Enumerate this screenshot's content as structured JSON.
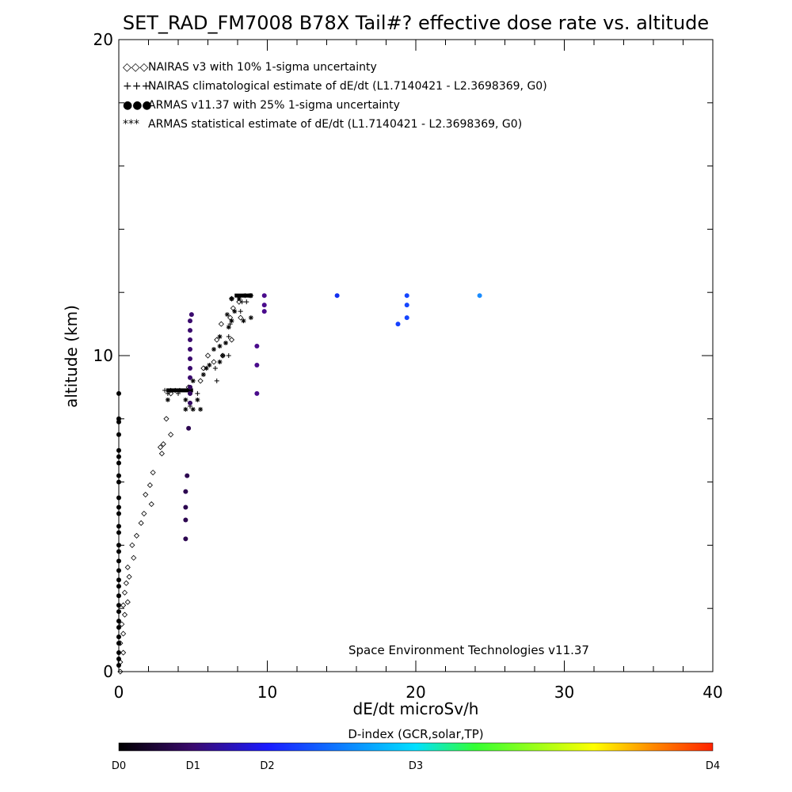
{
  "chart_data": {
    "type": "scatter",
    "title": "SET_RAD_FM7008  B78X Tail#? effective dose rate vs. altitude",
    "xlabel": "dE/dt microSv/h",
    "ylabel": "altitude (km)",
    "xlim": [
      0,
      40
    ],
    "ylim": [
      0,
      20
    ],
    "x_ticks": [
      "0",
      "10",
      "20",
      "30",
      "40"
    ],
    "y_ticks": [
      "0",
      "10",
      "20"
    ],
    "legend_position": "top-left",
    "legend": [
      {
        "symbol": "◇◇◇",
        "label": "NAIRAS v3 with 10% 1-sigma uncertainty"
      },
      {
        "symbol": "+++",
        "label": "NAIRAS climatological estimate of dE/dt (L1.7140421 - L2.3698369, G0)"
      },
      {
        "symbol": "●●●",
        "label": "ARMAS v11.37 with 25% 1-sigma uncertainty"
      },
      {
        "symbol": "***",
        "label": "ARMAS statistical estimate of dE/dt (L1.7140421 - L2.3698369, G0)"
      }
    ],
    "annotation": "Space Environment Technologies v11.37",
    "colorbar": {
      "title": "D-index (GCR,solar,TP)",
      "labels": [
        "D0",
        "D1",
        "D2",
        "D3",
        "D4"
      ],
      "colors": [
        "#000000",
        "#3a0a6e",
        "#1a1aff",
        "#00e0ff",
        "#33ff33",
        "#ffff00",
        "#ff8800",
        "#ff2200"
      ]
    },
    "series": [
      {
        "name": "NAIRAS v3 with 10% 1-sigma uncertainty",
        "marker": "diamond",
        "points": [
          [
            0.1,
            0
          ],
          [
            0.1,
            0.3
          ],
          [
            0.3,
            0.6
          ],
          [
            0.1,
            0.9
          ],
          [
            0.3,
            1.2
          ],
          [
            0.2,
            1.5
          ],
          [
            0.4,
            1.8
          ],
          [
            0.3,
            2.1
          ],
          [
            0.6,
            2.2
          ],
          [
            0.4,
            2.5
          ],
          [
            0.5,
            2.8
          ],
          [
            0.7,
            3.0
          ],
          [
            0.6,
            3.3
          ],
          [
            1.0,
            3.6
          ],
          [
            0.9,
            4.0
          ],
          [
            1.2,
            4.3
          ],
          [
            1.5,
            4.7
          ],
          [
            1.7,
            5.0
          ],
          [
            2.2,
            5.3
          ],
          [
            1.8,
            5.6
          ],
          [
            2.1,
            5.9
          ],
          [
            2.3,
            6.3
          ],
          [
            2.9,
            6.9
          ],
          [
            2.8,
            7.1
          ],
          [
            3.0,
            7.2
          ],
          [
            3.5,
            7.5
          ],
          [
            3.2,
            8.0
          ],
          [
            3.5,
            8.8
          ],
          [
            4.7,
            9.0
          ],
          [
            5.5,
            9.2
          ],
          [
            5.7,
            9.6
          ],
          [
            6.4,
            9.8
          ],
          [
            6.0,
            10.0
          ],
          [
            7.0,
            10.0
          ],
          [
            6.6,
            10.5
          ],
          [
            7.6,
            10.5
          ],
          [
            6.9,
            11.0
          ],
          [
            7.5,
            11.2
          ],
          [
            8.2,
            11.2
          ],
          [
            7.7,
            11.5
          ],
          [
            8.1,
            11.7
          ],
          [
            7.6,
            11.8
          ]
        ]
      },
      {
        "name": "NAIRAS climatological estimate of dE/dt (L1.7140421 - L2.3698369, G0)",
        "marker": "plus",
        "points": [
          [
            3.1,
            8.9
          ],
          [
            3.5,
            8.9
          ],
          [
            3.8,
            8.9
          ],
          [
            4.1,
            8.9
          ],
          [
            3.3,
            8.8
          ],
          [
            4.0,
            8.8
          ],
          [
            4.8,
            8.8
          ],
          [
            5.3,
            8.8
          ],
          [
            4.8,
            8.4
          ],
          [
            6.6,
            9.2
          ],
          [
            6.5,
            9.6
          ],
          [
            7.4,
            10.0
          ],
          [
            7.4,
            10.6
          ],
          [
            7.5,
            11.0
          ],
          [
            8.2,
            11.4
          ],
          [
            8.3,
            11.7
          ],
          [
            8.6,
            11.7
          ],
          [
            8.9,
            11.9
          ]
        ]
      },
      {
        "name": "ARMAS v11.37 with 25% 1-sigma uncertainty",
        "marker": "dot",
        "points": [
          [
            0,
            8.8
          ],
          [
            0,
            8.0
          ],
          [
            0,
            7.9
          ],
          [
            0,
            7.5
          ],
          [
            0,
            7.0
          ],
          [
            0,
            6.8
          ],
          [
            0,
            6.6
          ],
          [
            0,
            6.2
          ],
          [
            0,
            6.0
          ],
          [
            0,
            5.5
          ],
          [
            0,
            5.2
          ],
          [
            0,
            5.0
          ],
          [
            0,
            4.6
          ],
          [
            0,
            4.4
          ],
          [
            0,
            4.0
          ],
          [
            0,
            3.8
          ],
          [
            0,
            3.5
          ],
          [
            0,
            3.2
          ],
          [
            0,
            2.9
          ],
          [
            0,
            2.7
          ],
          [
            0,
            2.4
          ],
          [
            0,
            2.1
          ],
          [
            0,
            1.9
          ],
          [
            0,
            1.6
          ],
          [
            0,
            1.4
          ],
          [
            0,
            1.1
          ],
          [
            0,
            0.9
          ],
          [
            0,
            0.6
          ],
          [
            0,
            0.4
          ],
          [
            0,
            0.2
          ],
          [
            4.5,
            4.2
          ],
          [
            4.5,
            4.8
          ],
          [
            4.5,
            5.2
          ],
          [
            4.5,
            5.7
          ],
          [
            4.6,
            6.2
          ],
          [
            4.7,
            7.7
          ],
          [
            4.8,
            8.5
          ],
          [
            4.8,
            8.8
          ],
          [
            4.8,
            9.0
          ],
          [
            4.8,
            9.3
          ],
          [
            4.8,
            9.6
          ],
          [
            4.8,
            9.9
          ],
          [
            4.8,
            10.2
          ],
          [
            4.8,
            10.5
          ],
          [
            4.8,
            10.8
          ],
          [
            4.8,
            11.1
          ],
          [
            4.9,
            11.3
          ],
          [
            9.3,
            8.8
          ],
          [
            9.3,
            9.7
          ],
          [
            9.3,
            10.3
          ],
          [
            9.8,
            11.4
          ],
          [
            9.8,
            11.6
          ],
          [
            9.8,
            11.9
          ],
          [
            14.7,
            11.9
          ],
          [
            18.8,
            11.0
          ],
          [
            19.4,
            11.2
          ],
          [
            19.4,
            11.6
          ],
          [
            19.4,
            11.9
          ],
          [
            24.3,
            11.9
          ]
        ],
        "colors": [
          "#000000",
          "#000000",
          "#000000",
          "#000000",
          "#000000",
          "#000000",
          "#000000",
          "#000000",
          "#000000",
          "#000000",
          "#000000",
          "#000000",
          "#000000",
          "#000000",
          "#000000",
          "#000000",
          "#000000",
          "#000000",
          "#000000",
          "#000000",
          "#000000",
          "#000000",
          "#000000",
          "#000000",
          "#000000",
          "#000000",
          "#000000",
          "#000000",
          "#000000",
          "#000000",
          "#2c0650",
          "#2c0650",
          "#2c0650",
          "#2c0650",
          "#2c0650",
          "#2c0650",
          "#340860",
          "#340860",
          "#340860",
          "#3a0a6e",
          "#3a0a6e",
          "#3a0a6e",
          "#3a0a6e",
          "#3a0a6e",
          "#3a0a6e",
          "#3a0a6e",
          "#3a0a6e",
          "#4a0c8c",
          "#4a0c8c",
          "#4a0c8c",
          "#4a0c8c",
          "#4a0c8c",
          "#4a0c8c",
          "#1230f0",
          "#1540ff",
          "#1546ff",
          "#1546ff",
          "#1546ff",
          "#1a8cff"
        ]
      },
      {
        "name": "ARMAS statistical estimate of dE/dt (L1.7140421 - L2.3698369, G0)",
        "marker": "asterisk",
        "points": [
          [
            3.3,
            8.6
          ],
          [
            4.5,
            8.6
          ],
          [
            5.3,
            8.6
          ],
          [
            4.5,
            8.3
          ],
          [
            5.0,
            8.3
          ],
          [
            5.5,
            8.3
          ],
          [
            5.0,
            9.2
          ],
          [
            5.7,
            9.4
          ],
          [
            5.9,
            9.6
          ],
          [
            6.1,
            9.7
          ],
          [
            6.8,
            9.8
          ],
          [
            7.0,
            10.0
          ],
          [
            6.4,
            10.2
          ],
          [
            6.8,
            10.3
          ],
          [
            7.2,
            10.4
          ],
          [
            6.8,
            10.6
          ],
          [
            7.4,
            10.9
          ],
          [
            7.6,
            11.1
          ],
          [
            7.3,
            11.3
          ],
          [
            7.8,
            11.4
          ],
          [
            8.4,
            11.1
          ],
          [
            8.9,
            11.2
          ],
          [
            8.1,
            11.8
          ],
          [
            8.5,
            11.9
          ],
          [
            8.8,
            11.9
          ],
          [
            7.6,
            11.8
          ],
          [
            8.9,
            11.9
          ]
        ]
      }
    ],
    "thick_bars": [
      {
        "y": 8.9,
        "x0": 3.2,
        "x1": 5.0
      },
      {
        "y": 11.9,
        "x0": 7.8,
        "x1": 9.0
      }
    ]
  }
}
